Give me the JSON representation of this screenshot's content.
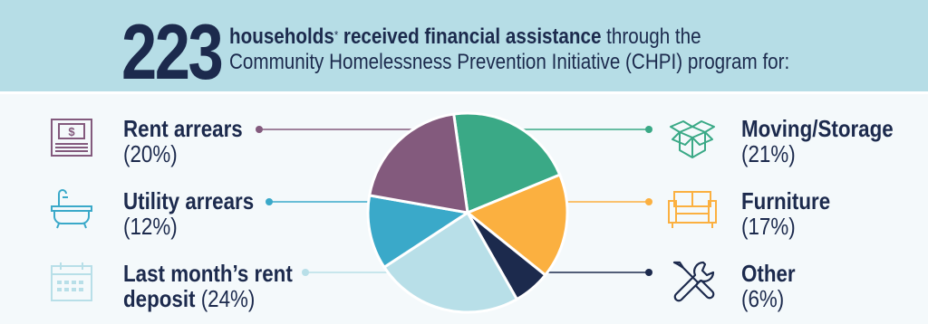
{
  "header": {
    "count": "223",
    "bold_text": "households",
    "footnote_mark": "*",
    "bold_text2": "received financial assistance",
    "text_rest": "through the",
    "line2": "Community Homelessness Prevention Initiative (CHPI) program for:"
  },
  "categories": [
    {
      "name": "Rent arrears",
      "pct_text": "(20%)",
      "color": "#835a7d",
      "icon": "cash-register-icon"
    },
    {
      "name": "Utility arrears",
      "pct_text": "(12%)",
      "color": "#3aa9c9",
      "icon": "bathtub-icon"
    },
    {
      "name": "Last month’s rent",
      "name_line2": "deposit",
      "pct_text": "(24%)",
      "color": "#b8dfe8",
      "icon": "calendar-icon"
    },
    {
      "name": "Moving/Storage",
      "pct_text": "(21%)",
      "color": "#3aa986",
      "icon": "box-icon"
    },
    {
      "name": "Furniture",
      "pct_text": "(17%)",
      "color": "#fbb040",
      "icon": "sofa-icon"
    },
    {
      "name": "Other",
      "pct_text": "(6%)",
      "color": "#1c2a4d",
      "icon": "tools-icon"
    }
  ],
  "chart_data": {
    "type": "pie",
    "title": "",
    "categories": [
      "Moving/Storage",
      "Furniture",
      "Other",
      "Last month’s rent deposit",
      "Utility arrears",
      "Rent arrears"
    ],
    "values": [
      21,
      17,
      6,
      24,
      12,
      20
    ],
    "colors": [
      "#3aa986",
      "#fbb040",
      "#1c2a4d",
      "#b8dfe8",
      "#3aa9c9",
      "#835a7d"
    ]
  }
}
